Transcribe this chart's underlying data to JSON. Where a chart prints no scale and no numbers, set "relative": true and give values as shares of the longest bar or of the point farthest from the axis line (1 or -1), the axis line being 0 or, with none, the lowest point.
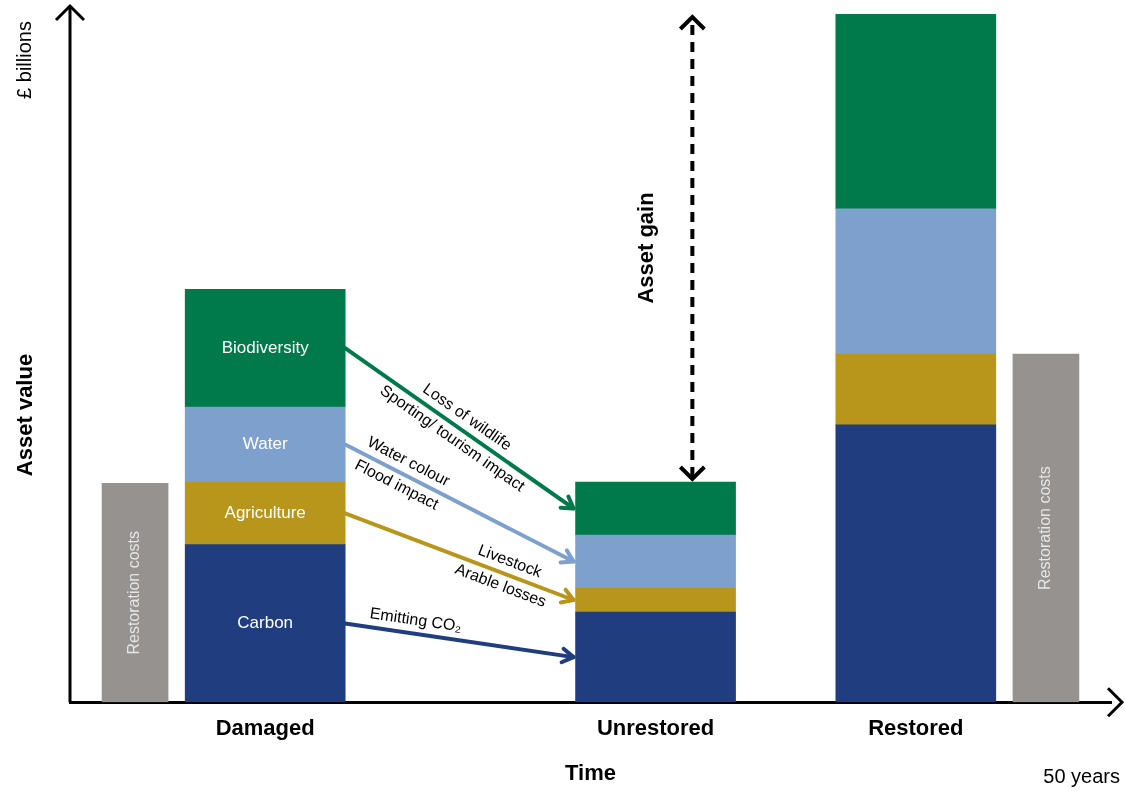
{
  "chart_data": {
    "type": "bar",
    "relative": true,
    "stacked": true,
    "categories": [
      null,
      "Damaged",
      null,
      null,
      "Unrestored",
      null,
      "Restored",
      null
    ],
    "series": [
      {
        "name": "Carbon",
        "color": "#203d7f",
        "values": [
          null,
          0.229,
          null,
          null,
          0.131,
          null,
          0.403,
          null
        ]
      },
      {
        "name": "Agriculture",
        "color": "#b8961c",
        "values": [
          null,
          0.091,
          null,
          null,
          0.035,
          null,
          0.103,
          null
        ]
      },
      {
        "name": "Water",
        "color": "#7da0cc",
        "values": [
          null,
          0.109,
          null,
          null,
          0.077,
          null,
          0.211,
          null
        ]
      },
      {
        "name": "Biodiversity",
        "color": "#007a4a",
        "values": [
          null,
          0.171,
          null,
          null,
          0.077,
          null,
          0.283,
          null
        ]
      },
      {
        "name": "Restoration costs",
        "color": "#959290",
        "values": [
          0.318,
          null,
          null,
          null,
          null,
          null,
          null,
          0.506
        ]
      }
    ],
    "xlabel": "Time",
    "ylabel": "Asset value",
    "annotations": [
      "Emitting CO₂",
      "Livestock",
      "Arable losses",
      "Water colour",
      "Flood impact",
      "Loss of wildlife",
      "Sporting/ tourism impact",
      "Asset gain",
      "£ billions",
      "50 years"
    ]
  }
}
